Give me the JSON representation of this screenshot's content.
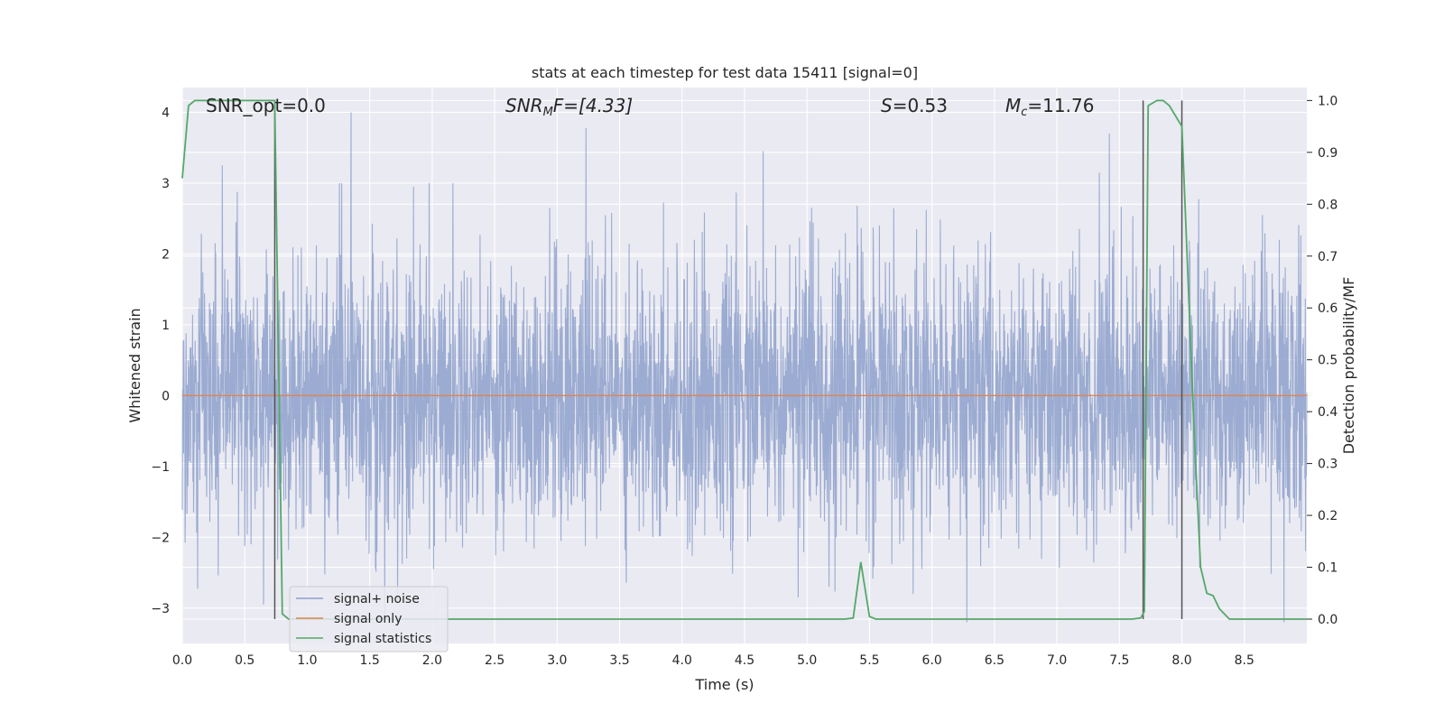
{
  "chart_data": {
    "type": "line",
    "title": "stats at each timestep for test data 15411 [signal=0]",
    "xlabel": "Time (s)",
    "ylabel": "Whitened strain",
    "ylabel_right": "Detection probability/MF",
    "xlim": [
      0.0,
      9.0
    ],
    "ylim": [
      -3.5,
      4.35
    ],
    "ylim_right": [
      -0.047,
      1.025
    ],
    "xticks": [
      "0.0",
      "0.5",
      "1.0",
      "1.5",
      "2.0",
      "2.5",
      "3.0",
      "3.5",
      "4.0",
      "4.5",
      "5.0",
      "5.5",
      "6.0",
      "6.5",
      "7.0",
      "7.5",
      "8.0",
      "8.5"
    ],
    "yticks": [
      "4",
      "3",
      "2",
      "1",
      "0",
      "−1",
      "−2",
      "−3"
    ],
    "yticks_right": [
      "1.0",
      "0.9",
      "0.8",
      "0.7",
      "0.6",
      "0.5",
      "0.4",
      "0.3",
      "0.2",
      "0.1",
      "0.0"
    ],
    "grid": true,
    "legend_placement": "lower-left",
    "annotations": {
      "snr_opt": "SNR_opt=0.0",
      "snr_mf_main": "SNR",
      "snr_mf_sub": "M",
      "snr_mf_rest": "F=[4.33]",
      "s_main": "S",
      "s_rest": "=0.53",
      "mc_main": "M",
      "mc_sub": "c",
      "mc_rest": "=11.76"
    },
    "vertical_lines_x": [
      0.74,
      7.69,
      8.0
    ],
    "series": [
      {
        "name": "signal+ noise",
        "color": "#8da0cb",
        "description_values": "whitened noise, roughly within -3.2..4.0",
        "peaks": [
          [
            0.32,
            3.25
          ],
          [
            0.43,
            2.45
          ],
          [
            1.35,
            4.0
          ],
          [
            1.85,
            2.95
          ],
          [
            3.23,
            3.78
          ],
          [
            4.65,
            3.45
          ],
          [
            7.42,
            3.7
          ],
          [
            7.34,
            3.15
          ],
          [
            5.85,
            -2.8
          ],
          [
            6.28,
            -3.2
          ],
          [
            4.93,
            -2.85
          ],
          [
            0.65,
            -2.95
          ]
        ]
      },
      {
        "name": "signal only",
        "color": "#dd8452",
        "x": [
          0.0,
          9.0
        ],
        "y": [
          0.0,
          0.0
        ]
      },
      {
        "name": "signal statistics",
        "color": "#55a868",
        "x": [
          0.0,
          0.05,
          0.1,
          0.5,
          0.7,
          0.74,
          0.8,
          0.85,
          1.0,
          5.3,
          5.37,
          5.43,
          5.5,
          5.55,
          7.6,
          7.67,
          7.7,
          7.73,
          7.8,
          7.85,
          7.9,
          8.0,
          8.1,
          8.15,
          8.2,
          8.25,
          8.3,
          8.38,
          8.5,
          9.0
        ],
        "y": [
          0.85,
          0.99,
          1.0,
          1.0,
          1.0,
          1.0,
          0.01,
          0.0,
          0.0,
          0.0,
          0.002,
          0.11,
          0.005,
          0.0,
          0.0,
          0.002,
          0.015,
          0.99,
          1.0,
          1.0,
          0.99,
          0.95,
          0.35,
          0.1,
          0.05,
          0.045,
          0.02,
          0.0,
          0.0,
          0.0
        ]
      }
    ]
  }
}
